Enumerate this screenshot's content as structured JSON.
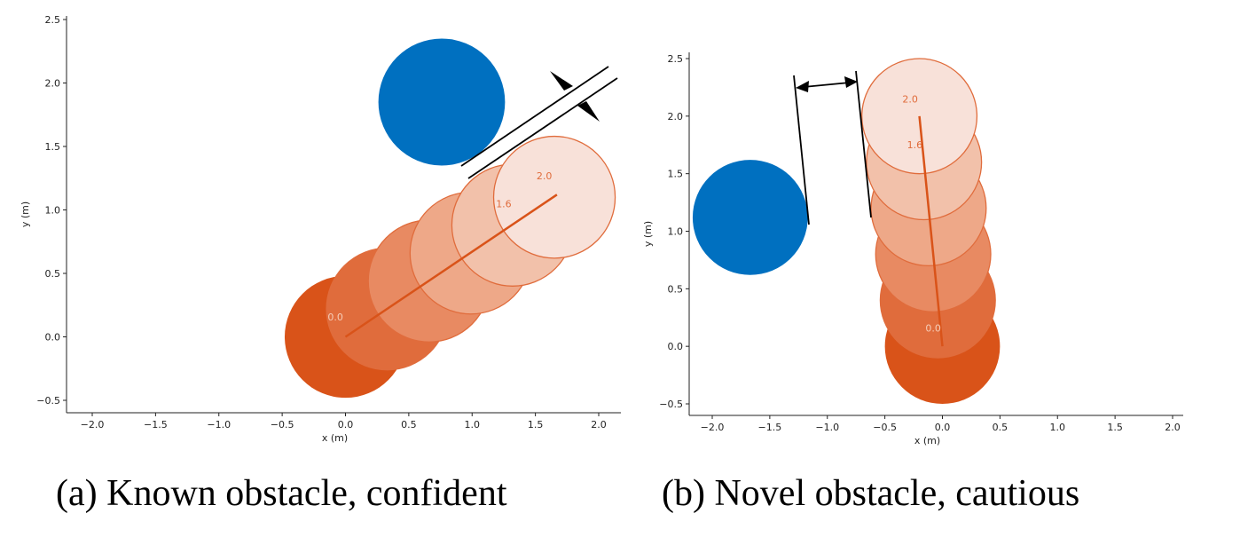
{
  "chart_data": [
    {
      "type": "scatter",
      "caption": "(a) Known obstacle, confident",
      "xlabel": "x (m)",
      "ylabel": "y (m)",
      "xlim": [
        -2.2,
        2.2
      ],
      "ylim": [
        -0.6,
        2.55
      ],
      "xticks": [
        "−2.0",
        "−1.5",
        "−1.0",
        "−0.5",
        "0.0",
        "0.5",
        "1.0",
        "1.5",
        "2.0"
      ],
      "yticks": [
        "−0.5",
        "0.0",
        "0.5",
        "1.0",
        "1.5",
        "2.0",
        "2.5"
      ],
      "grid": false,
      "obstacle": {
        "x": 0.76,
        "y": 1.85,
        "radius": 0.5,
        "color": "#0070c0"
      },
      "robot_radius": 0.48,
      "robot_colors": [
        "#d95319",
        "#e06c3c",
        "#e88a62",
        "#eea888",
        "#f2c1aa",
        "#f8e1d9"
      ],
      "robot_positions": [
        {
          "x": 0.0,
          "y": 0.0
        },
        {
          "x": 0.33,
          "y": 0.22
        },
        {
          "x": 0.66,
          "y": 0.44
        },
        {
          "x": 0.99,
          "y": 0.66
        },
        {
          "x": 1.32,
          "y": 0.88
        },
        {
          "x": 1.65,
          "y": 1.1
        }
      ],
      "trajectory": [
        {
          "x": 0.0,
          "y": 0.0
        },
        {
          "x": 1.67,
          "y": 1.12
        }
      ],
      "annotations": [
        {
          "text": "0.0",
          "x": -0.08,
          "y": 0.13,
          "color": "#f6cdb8"
        },
        {
          "text": "1.6",
          "x": 1.25,
          "y": 1.02,
          "color": "#e06c3c"
        },
        {
          "text": "2.0",
          "x": 1.57,
          "y": 1.24,
          "color": "#e06c3c"
        }
      ],
      "clearance_marker": "narrow gap (arrows pointing inward)"
    },
    {
      "type": "scatter",
      "caption": "(b) Novel obstacle, cautious",
      "xlabel": "x (m)",
      "ylabel": "y (m)",
      "xlim": [
        -2.2,
        2.05
      ],
      "ylim": [
        -0.6,
        2.55
      ],
      "xticks": [
        "−2.0",
        "−1.5",
        "−1.0",
        "−0.5",
        "0.0",
        "0.5",
        "1.0",
        "1.5",
        "2.0"
      ],
      "yticks": [
        "−0.5",
        "0.0",
        "0.5",
        "1.0",
        "1.5",
        "2.0",
        "2.5"
      ],
      "grid": false,
      "obstacle": {
        "x": -1.67,
        "y": 1.12,
        "radius": 0.5,
        "color": "#0070c0"
      },
      "robot_radius": 0.5,
      "robot_colors": [
        "#d95319",
        "#e06c3c",
        "#e88a62",
        "#eea888",
        "#f2c1aa",
        "#f8e1d9"
      ],
      "robot_positions": [
        {
          "x": 0.0,
          "y": 0.0
        },
        {
          "x": -0.04,
          "y": 0.4
        },
        {
          "x": -0.08,
          "y": 0.8
        },
        {
          "x": -0.12,
          "y": 1.2
        },
        {
          "x": -0.16,
          "y": 1.6
        },
        {
          "x": -0.2,
          "y": 2.0
        }
      ],
      "trajectory": [
        {
          "x": 0.0,
          "y": 0.0
        },
        {
          "x": -0.2,
          "y": 2.0
        }
      ],
      "annotations": [
        {
          "text": "0.0",
          "x": -0.08,
          "y": 0.13,
          "color": "#f6cdb8"
        },
        {
          "text": "1.6",
          "x": -0.24,
          "y": 1.72,
          "color": "#e06c3c"
        },
        {
          "text": "2.0",
          "x": -0.28,
          "y": 2.12,
          "color": "#e06c3c"
        }
      ],
      "clearance_marker": "wide gap (double-headed arrow)"
    }
  ]
}
